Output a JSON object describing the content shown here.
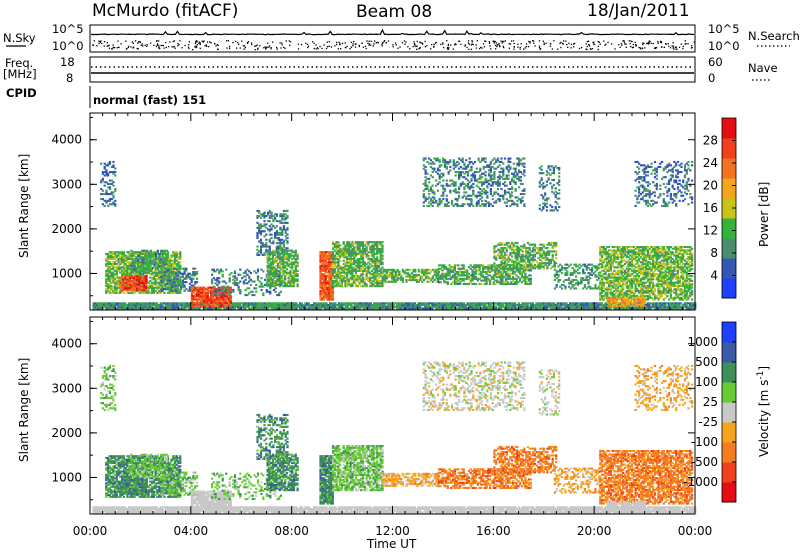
{
  "header": {
    "station": "McMurdo (fitACF)",
    "beam": "Beam 08",
    "date": "18/Jan/2011"
  },
  "colors": {
    "power": [
      "#1f3fff",
      "#3456b5",
      "#4a8f6c",
      "#33b33a",
      "#c9c219",
      "#f5a41d",
      "#f47320",
      "#f0411e",
      "#e30f13"
    ],
    "velocity": [
      "#e50d13",
      "#f0411e",
      "#f57d20",
      "#f5a41d",
      "#c8c8c8",
      "#66cc33",
      "#3f8f5a",
      "#3a5aa8",
      "#1f3fff"
    ],
    "ground_scatter": "#c8c8c8"
  },
  "chart_data": [
    {
      "type": "line",
      "name": "n-sky-n-search-panel",
      "left_label": "N.Sky",
      "right_label": "N.Search",
      "left_ticks": [
        "10^5",
        "10^0"
      ],
      "right_ticks": [
        "10^5",
        "10^0"
      ],
      "series_style": [
        "solid",
        "dotted"
      ]
    },
    {
      "type": "line",
      "name": "freq-nave-panel",
      "left_label_line1": "Freq.",
      "left_label_line2": "[MHz]",
      "right_label": "Nave",
      "left_ticks": [
        "18",
        "8"
      ],
      "right_ticks": [
        "60",
        "0"
      ],
      "series_style": [
        "dotted",
        "solid"
      ]
    },
    {
      "type": "table",
      "name": "cpid-strip",
      "label": "CPID",
      "value": "normal (fast) 151"
    },
    {
      "type": "heatmap",
      "name": "power-panel",
      "ylabel": "Slant Range [km]",
      "yticks": [
        "1000",
        "2000",
        "3000",
        "4000"
      ],
      "ylim": [
        180,
        4600
      ],
      "xlim_hours": [
        0,
        24
      ],
      "colorbar_label": "Power [dB]",
      "colorbar_ticks": [
        "4",
        "8",
        "12",
        "16",
        "20",
        "24",
        "28"
      ],
      "colorbar_range": [
        0,
        32
      ]
    },
    {
      "type": "heatmap",
      "name": "velocity-panel",
      "ylabel": "Slant Range [km]",
      "yticks": [
        "1000",
        "2000",
        "3000",
        "4000"
      ],
      "ylim": [
        180,
        4600
      ],
      "xlim_hours": [
        0,
        24
      ],
      "xticks": [
        "00:00",
        "04:00",
        "08:00",
        "12:00",
        "16:00",
        "20:00",
        "00:00"
      ],
      "xlabel": "Time UT",
      "colorbar_label": "Velocity",
      "colorbar_unit": "[m s",
      "colorbar_unit_exp": "-1",
      "colorbar_unit_close": "]",
      "colorbar_ticks": [
        "1000",
        "500",
        "100",
        "25",
        "-25",
        "-100",
        "-500",
        "-1000"
      ]
    }
  ],
  "scatter_regions": [
    {
      "t0": 0.1,
      "t1": 24,
      "r0": 200,
      "r1": 330,
      "p": 9,
      "v": 4,
      "den": 0.95,
      "gs": true
    },
    {
      "t0": 0.6,
      "t1": 3.6,
      "r0": 550,
      "r1": 1500,
      "p": 13,
      "v": 6,
      "den": 0.75,
      "gs": false
    },
    {
      "t0": 1.2,
      "t1": 2.2,
      "r0": 620,
      "r1": 950,
      "p": 27,
      "v": 6,
      "den": 0.85,
      "gs": false
    },
    {
      "t0": 1.6,
      "t1": 3.0,
      "r0": 1000,
      "r1": 1500,
      "p": 10,
      "v": 5,
      "den": 0.55,
      "gs": false
    },
    {
      "t0": 2.8,
      "t1": 4.2,
      "r0": 600,
      "r1": 1100,
      "p": 8,
      "v": 5,
      "den": 0.45,
      "gs": false
    },
    {
      "t0": 4.0,
      "t1": 5.6,
      "r0": 250,
      "r1": 700,
      "p": 26,
      "v": 4,
      "den": 0.9,
      "gs": true
    },
    {
      "t0": 4.8,
      "t1": 7.6,
      "r0": 500,
      "r1": 1100,
      "p": 8,
      "v": 5,
      "den": 0.3,
      "gs": false
    },
    {
      "t0": 6.6,
      "t1": 7.8,
      "r0": 1400,
      "r1": 2400,
      "p": 8,
      "v": 6,
      "den": 0.45,
      "gs": false
    },
    {
      "t0": 7.0,
      "t1": 8.2,
      "r0": 700,
      "r1": 1500,
      "p": 12,
      "v": 6,
      "den": 0.7,
      "gs": false
    },
    {
      "t0": 9.1,
      "t1": 9.6,
      "r0": 400,
      "r1": 1500,
      "p": 25,
      "v": 6,
      "den": 0.9,
      "gs": false
    },
    {
      "t0": 9.6,
      "t1": 11.6,
      "r0": 700,
      "r1": 1700,
      "p": 12,
      "v": 5,
      "den": 0.75,
      "gs": false
    },
    {
      "t0": 11.6,
      "t1": 13.8,
      "r0": 800,
      "r1": 1100,
      "p": 12,
      "v": 3,
      "den": 0.6,
      "gs": false
    },
    {
      "t0": 13.8,
      "t1": 17.5,
      "r0": 750,
      "r1": 1200,
      "p": 11,
      "v": 2,
      "den": 0.6,
      "gs": false
    },
    {
      "t0": 16.0,
      "t1": 18.5,
      "r0": 1100,
      "r1": 1700,
      "p": 12,
      "v": 2,
      "den": 0.55,
      "gs": false
    },
    {
      "t0": 18.4,
      "t1": 20.2,
      "r0": 650,
      "r1": 1200,
      "p": 10,
      "v": 3,
      "den": 0.45,
      "gs": false
    },
    {
      "t0": 20.2,
      "t1": 23.9,
      "r0": 400,
      "r1": 1600,
      "p": 13,
      "v": 2,
      "den": 0.7,
      "gs": false
    },
    {
      "t0": 20.5,
      "t1": 22.0,
      "r0": 250,
      "r1": 450,
      "p": 20,
      "v": 4,
      "den": 0.85,
      "gs": true
    },
    {
      "t0": 13.2,
      "t1": 17.2,
      "r0": 2500,
      "r1": 3600,
      "p": 8,
      "v": 4,
      "den": 0.35,
      "gs": false
    },
    {
      "t0": 17.8,
      "t1": 18.6,
      "r0": 2400,
      "r1": 3400,
      "p": 8,
      "v": 4,
      "den": 0.3,
      "gs": false
    },
    {
      "t0": 0.4,
      "t1": 1.0,
      "r0": 2500,
      "r1": 3500,
      "p": 7,
      "v": 5,
      "den": 0.3,
      "gs": false
    },
    {
      "t0": 21.6,
      "t1": 23.9,
      "r0": 2500,
      "r1": 3500,
      "p": 7,
      "v": 3,
      "den": 0.25,
      "gs": false
    }
  ]
}
